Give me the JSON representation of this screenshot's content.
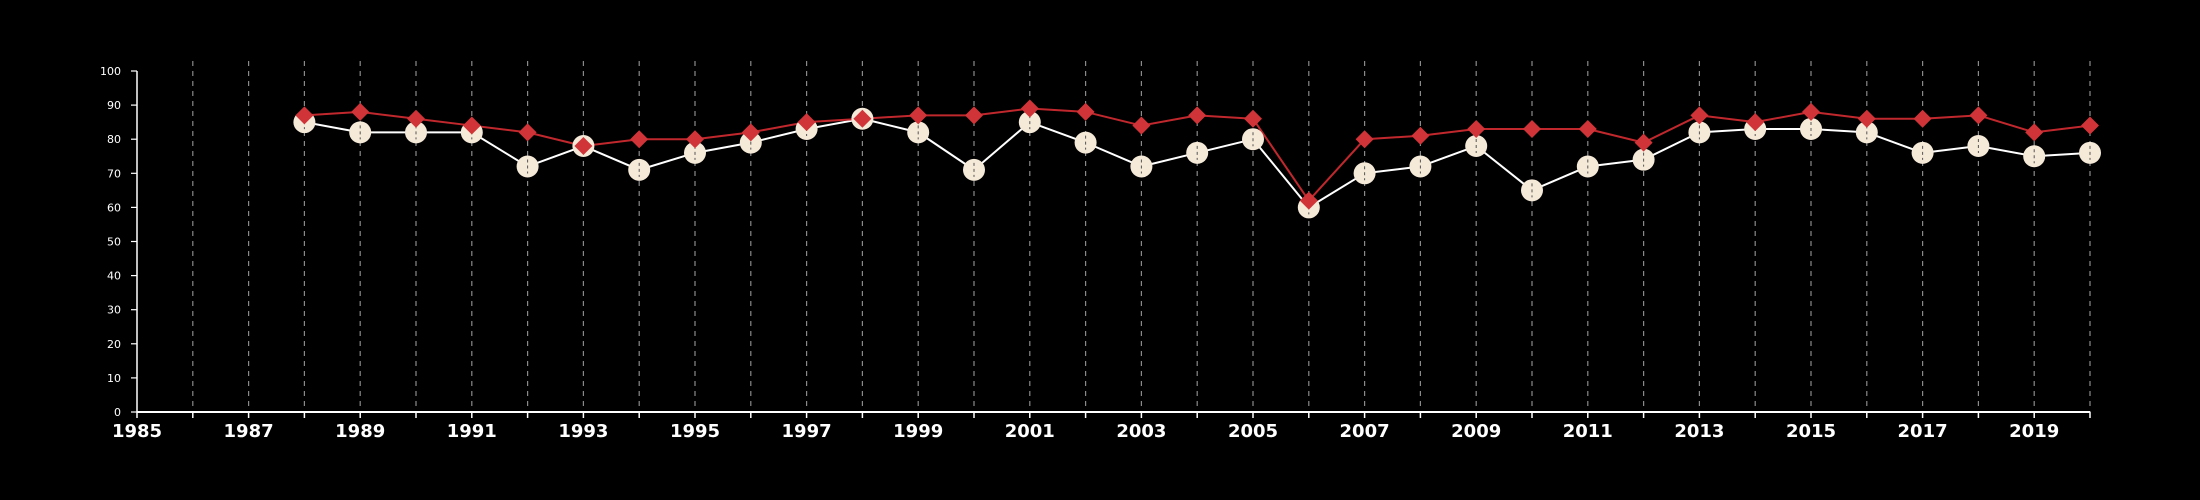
{
  "chart_data": {
    "type": "line",
    "title": "",
    "xlabel": "",
    "ylabel": "",
    "xlim": [
      1985,
      2020
    ],
    "ylim": [
      0,
      100
    ],
    "x_tick_labels": [
      "1985",
      "1987",
      "1989",
      "1991",
      "1993",
      "1995",
      "1997",
      "1999",
      "2001",
      "2003",
      "2005",
      "2007",
      "2009",
      "2011",
      "2013",
      "2015",
      "2017",
      "2019"
    ],
    "y_tick_labels": [
      "0",
      "10",
      "20",
      "30",
      "40",
      "50",
      "60",
      "70",
      "80",
      "90",
      "100"
    ],
    "grid": "vertical dashed lines at each year",
    "x": [
      1988,
      1989,
      1990,
      1991,
      1992,
      1993,
      1994,
      1995,
      1996,
      1997,
      1998,
      1999,
      2000,
      2001,
      2002,
      2003,
      2004,
      2005,
      2006,
      2007,
      2008,
      2009,
      2010,
      2011,
      2012,
      2013,
      2014,
      2015,
      2016,
      2017,
      2018,
      2019,
      2020
    ],
    "series": [
      {
        "marker": "circle",
        "color": "#f5e9d8",
        "line_color": "#ffffff",
        "values": [
          85,
          82,
          82,
          82,
          72,
          78,
          71,
          76,
          79,
          83,
          86,
          82,
          71,
          85,
          79,
          72,
          76,
          80,
          60,
          70,
          72,
          78,
          65,
          72,
          74,
          82,
          83,
          83,
          82,
          76,
          78,
          75,
          76
        ]
      },
      {
        "marker": "diamond",
        "color": "#d13438",
        "line_color": "#c0282d",
        "values": [
          87,
          88,
          86,
          84,
          82,
          78,
          80,
          80,
          82,
          85,
          86,
          87,
          87,
          89,
          88,
          84,
          87,
          86,
          62,
          80,
          81,
          83,
          83,
          83,
          79,
          87,
          85,
          88,
          86,
          86,
          87,
          82,
          84
        ]
      }
    ]
  }
}
